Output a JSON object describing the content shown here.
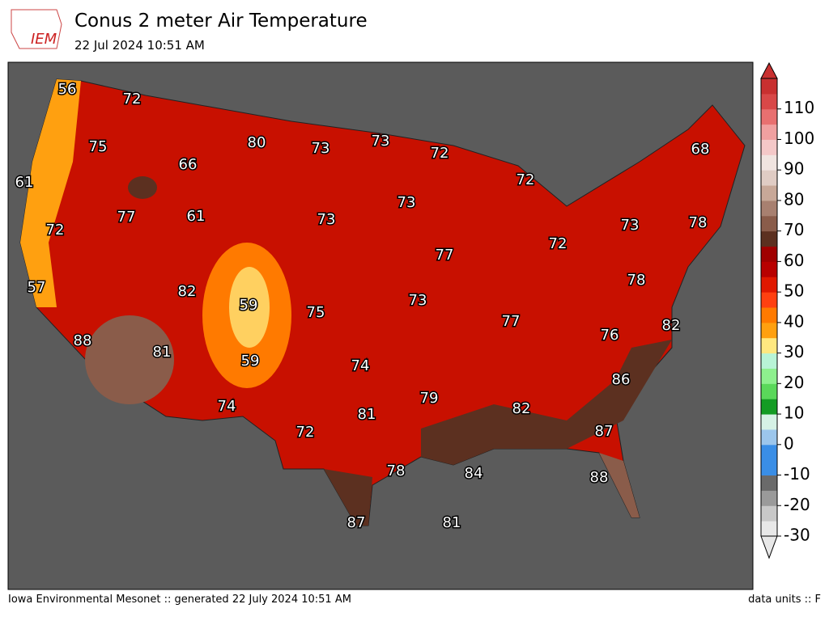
{
  "header": {
    "logo": "IEM",
    "title": "Conus 2 meter Air Temperature",
    "subtitle": "22 Jul 2024 10:51 AM"
  },
  "map_labels": [
    56,
    72,
    75,
    80,
    73,
    73,
    72,
    68,
    61,
    66,
    72,
    73,
    77,
    61,
    73,
    72,
    73,
    78,
    77,
    72,
    57,
    82,
    59,
    75,
    73,
    78,
    77,
    88,
    81,
    76,
    82,
    59,
    74,
    86,
    79,
    74,
    81,
    82,
    72,
    87,
    78,
    84,
    88,
    87,
    81
  ],
  "colorbar": {
    "lim": [
      -30,
      120
    ],
    "ticks": [
      -30,
      -20,
      -10,
      0,
      10,
      20,
      30,
      40,
      50,
      60,
      70,
      80,
      90,
      100,
      110
    ],
    "colors": [
      "#e8e8e8",
      "#c8c8c8",
      "#9a9a9a",
      "#6a6a6a",
      "#3a8ee6",
      "#3a8ee6",
      "#9cc6ec",
      "#d6f2e6",
      "#149c24",
      "#5ad85a",
      "#8ef08e",
      "#b8f4d6",
      "#ffe880",
      "#ffa010",
      "#ff7a00",
      "#ff4010",
      "#e01800",
      "#b80000",
      "#a00000",
      "#5c3020",
      "#8a5c4a",
      "#a88070",
      "#c8a898",
      "#e0ccc4",
      "#f0e4e0",
      "#f4c8c8",
      "#f0a0a0",
      "#e87070",
      "#d84848",
      "#c83030"
    ]
  },
  "footer": {
    "left": "Iowa Environmental Mesonet :: generated 22 July 2024 10:51 AM",
    "right": "data units :: F"
  }
}
